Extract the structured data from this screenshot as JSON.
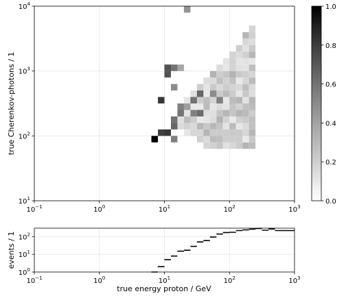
{
  "chart_data": [
    {
      "type": "heatmap",
      "title": "",
      "xlabel": "",
      "ylabel": "true Cherenkov-photons / 1",
      "x_scale": "log",
      "y_scale": "log",
      "xlim": [
        0.1,
        1000
      ],
      "ylim": [
        10,
        10000
      ],
      "grid": true,
      "x_ticks": [
        {
          "base": "10",
          "exp": "−1"
        },
        {
          "base": "10",
          "exp": "0"
        },
        {
          "base": "10",
          "exp": "1"
        },
        {
          "base": "10",
          "exp": "2"
        },
        {
          "base": "10",
          "exp": "3"
        }
      ],
      "y_ticks": [
        {
          "base": "10",
          "exp": "1"
        },
        {
          "base": "10",
          "exp": "2"
        },
        {
          "base": "10",
          "exp": "3"
        },
        {
          "base": "10",
          "exp": "4"
        }
      ],
      "x_bin_edges_log10_start": 0.8,
      "x_bin_width_log10": 0.1,
      "y_bin_edges_log10_start": 1.8,
      "y_bin_width_log10": 0.1,
      "cells": [
        [
          0.8,
          1.9,
          1.0
        ],
        [
          0.9,
          2.5,
          0.78
        ],
        [
          0.9,
          2.0,
          0.75
        ],
        [
          1.0,
          2.0,
          0.78
        ],
        [
          1.0,
          2.9,
          0.68
        ],
        [
          1.0,
          3.0,
          0.68
        ],
        [
          1.1,
          3.0,
          0.55
        ],
        [
          1.1,
          2.7,
          0.45
        ],
        [
          1.1,
          2.2,
          0.55
        ],
        [
          1.1,
          2.1,
          0.6
        ],
        [
          1.1,
          1.9,
          0.5
        ],
        [
          1.2,
          3.0,
          0.35
        ],
        [
          1.2,
          2.4,
          0.5
        ],
        [
          1.2,
          2.3,
          0.55
        ],
        [
          1.3,
          3.9,
          0.42
        ],
        [
          1.3,
          2.4,
          0.38
        ],
        [
          1.4,
          2.5,
          0.55
        ],
        [
          1.4,
          2.3,
          0.5
        ],
        [
          1.5,
          2.6,
          0.6
        ],
        [
          1.5,
          2.3,
          0.58
        ],
        [
          1.7,
          2.6,
          0.45
        ],
        [
          1.8,
          2.5,
          0.5
        ]
      ],
      "colorbar": {
        "min": 0.0,
        "max": 1.0,
        "ticks": [
          "0.0",
          "0.2",
          "0.4",
          "0.6",
          "0.8",
          "1.0"
        ],
        "tick_values": [
          0.0,
          0.2,
          0.4,
          0.6,
          0.8,
          1.0
        ]
      }
    },
    {
      "type": "step",
      "title": "",
      "xlabel": "true energy proton / GeV",
      "ylabel": "events / 1",
      "x_scale": "log",
      "y_scale": "log",
      "xlim": [
        0.1,
        1000
      ],
      "ylim": [
        1,
        300
      ],
      "grid": true,
      "x_ticks": [
        {
          "base": "10",
          "exp": "−1"
        },
        {
          "base": "10",
          "exp": "0"
        },
        {
          "base": "10",
          "exp": "1"
        },
        {
          "base": "10",
          "exp": "2"
        },
        {
          "base": "10",
          "exp": "3"
        }
      ],
      "y_ticks": [
        {
          "base": "10",
          "exp": "0"
        },
        {
          "base": "10",
          "exp": "1"
        },
        {
          "base": "10",
          "exp": "2"
        }
      ],
      "bins": [
        {
          "x0": 6.3,
          "x1": 7.9,
          "y": 1.0
        },
        {
          "x0": 7.9,
          "x1": 10.0,
          "y": 2.0
        },
        {
          "x0": 10.0,
          "x1": 12.6,
          "y": 5.0
        },
        {
          "x0": 12.6,
          "x1": 15.8,
          "y": 8.0
        },
        {
          "x0": 15.8,
          "x1": 20.0,
          "y": 15.0
        },
        {
          "x0": 20.0,
          "x1": 25.1,
          "y": 17.0
        },
        {
          "x0": 25.1,
          "x1": 31.6,
          "y": 28.0
        },
        {
          "x0": 31.6,
          "x1": 39.8,
          "y": 50.0
        },
        {
          "x0": 39.8,
          "x1": 50.1,
          "y": 60.0
        },
        {
          "x0": 50.1,
          "x1": 63.1,
          "y": 95.0
        },
        {
          "x0": 63.1,
          "x1": 79.4,
          "y": 140.0
        },
        {
          "x0": 79.4,
          "x1": 100.0,
          "y": 170.0
        },
        {
          "x0": 100.0,
          "x1": 125.9,
          "y": 175.0
        },
        {
          "x0": 125.9,
          "x1": 158.5,
          "y": 220.0
        },
        {
          "x0": 158.5,
          "x1": 199.5,
          "y": 240.0
        },
        {
          "x0": 199.5,
          "x1": 251.2,
          "y": 265.0
        },
        {
          "x0": 251.2,
          "x1": 316.2,
          "y": 290.0
        },
        {
          "x0": 316.2,
          "x1": 398.1,
          "y": 230.0
        },
        {
          "x0": 398.1,
          "x1": 501.2,
          "y": 270.0
        },
        {
          "x0": 501.2,
          "x1": 631.0,
          "y": 220.0
        },
        {
          "x0": 631.0,
          "x1": 794.3,
          "y": 220.0
        },
        {
          "x0": 794.3,
          "x1": 1000.0,
          "y": 220.0
        }
      ]
    }
  ]
}
